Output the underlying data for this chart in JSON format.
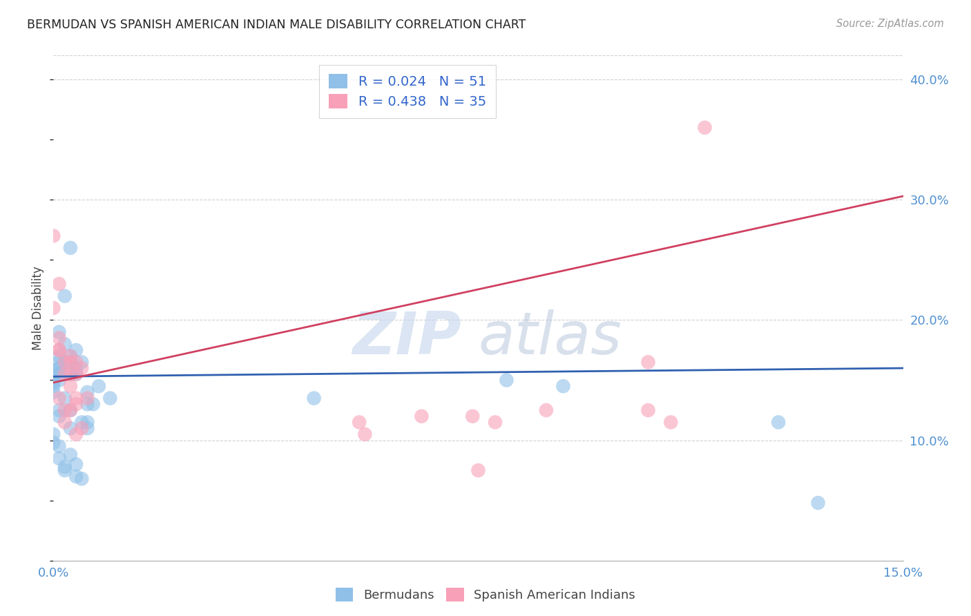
{
  "title": "BERMUDAN VS SPANISH AMERICAN INDIAN MALE DISABILITY CORRELATION CHART",
  "source": "Source: ZipAtlas.com",
  "ylabel_label": "Male Disability",
  "watermark_zip": "ZIP",
  "watermark_atlas": "atlas",
  "legend_entries": [
    {
      "label": "R = 0.024   N = 51",
      "color": "#a8c8e8"
    },
    {
      "label": "R = 0.438   N = 35",
      "color": "#f8b8c8"
    }
  ],
  "legend_bottom": [
    "Bermudans",
    "Spanish American Indians"
  ],
  "xlim": [
    0.0,
    0.15
  ],
  "ylim": [
    0.0,
    0.42
  ],
  "xticks": [
    0.0,
    0.03,
    0.06,
    0.09,
    0.12,
    0.15
  ],
  "yticks_right": [
    0.1,
    0.2,
    0.3,
    0.4
  ],
  "ytick_labels_right": [
    "10.0%",
    "20.0%",
    "30.0%",
    "40.0%"
  ],
  "blue_color": "#90c0e8",
  "pink_color": "#f8a0b8",
  "blue_line_color": "#3060b0",
  "pink_line_color": "#d04060",
  "grid_color": "#d0d0d0",
  "bg_color": "#ffffff",
  "tick_color": "#5090d0",
  "blue_scatter_x": [
    0.0,
    0.0,
    0.0,
    0.0,
    0.0,
    0.001,
    0.001,
    0.001,
    0.001,
    0.001,
    0.001,
    0.001,
    0.001,
    0.002,
    0.002,
    0.002,
    0.002,
    0.003,
    0.003,
    0.003,
    0.003,
    0.004,
    0.004,
    0.004,
    0.005,
    0.006,
    0.006,
    0.008,
    0.01,
    0.046,
    0.08,
    0.09,
    0.128,
    0.135,
    0.0,
    0.0,
    0.001,
    0.001,
    0.001,
    0.002,
    0.002,
    0.003,
    0.003,
    0.003,
    0.004,
    0.004,
    0.005,
    0.005,
    0.006,
    0.006,
    0.007
  ],
  "blue_scatter_y": [
    0.155,
    0.15,
    0.148,
    0.145,
    0.14,
    0.19,
    0.17,
    0.165,
    0.16,
    0.155,
    0.15,
    0.12,
    0.095,
    0.22,
    0.18,
    0.135,
    0.075,
    0.26,
    0.17,
    0.155,
    0.11,
    0.175,
    0.16,
    0.07,
    0.165,
    0.13,
    0.115,
    0.145,
    0.135,
    0.135,
    0.15,
    0.145,
    0.115,
    0.048,
    0.105,
    0.098,
    0.16,
    0.125,
    0.085,
    0.165,
    0.078,
    0.165,
    0.125,
    0.088,
    0.155,
    0.08,
    0.115,
    0.068,
    0.14,
    0.11,
    0.13
  ],
  "pink_scatter_x": [
    0.0,
    0.0,
    0.001,
    0.001,
    0.001,
    0.001,
    0.002,
    0.002,
    0.002,
    0.003,
    0.003,
    0.003,
    0.003,
    0.004,
    0.004,
    0.004,
    0.004,
    0.005,
    0.005,
    0.006,
    0.054,
    0.055,
    0.065,
    0.074,
    0.075,
    0.078,
    0.087,
    0.105,
    0.105,
    0.109,
    0.115,
    0.001,
    0.002,
    0.003,
    0.004
  ],
  "pink_scatter_y": [
    0.27,
    0.21,
    0.23,
    0.185,
    0.175,
    0.135,
    0.165,
    0.155,
    0.115,
    0.165,
    0.155,
    0.145,
    0.125,
    0.165,
    0.155,
    0.135,
    0.105,
    0.16,
    0.11,
    0.135,
    0.115,
    0.105,
    0.12,
    0.12,
    0.075,
    0.115,
    0.125,
    0.165,
    0.125,
    0.115,
    0.36,
    0.175,
    0.125,
    0.17,
    0.13
  ],
  "blue_line": {
    "x": [
      0.0,
      0.15
    ],
    "y": [
      0.153,
      0.16
    ]
  },
  "pink_line": {
    "x": [
      0.0,
      0.15
    ],
    "y": [
      0.148,
      0.303
    ]
  }
}
